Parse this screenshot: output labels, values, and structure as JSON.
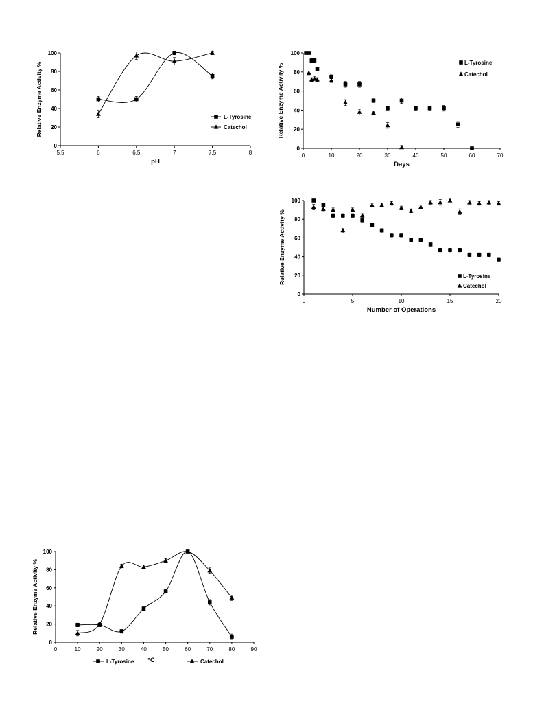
{
  "chart_data": [
    {
      "id": "ph",
      "type": "line",
      "xlabel": "pH",
      "ylabel": "Relative Enzyme Activity %",
      "xlim": [
        5.5,
        8
      ],
      "ylim": [
        0,
        100
      ],
      "xticks": [
        "5.5",
        "6",
        "6.5",
        "7",
        "7.5",
        "8"
      ],
      "yticks": [
        "0",
        "20",
        "40",
        "60",
        "80",
        "100"
      ],
      "legend_position": "right",
      "smooth": true,
      "series": [
        {
          "name": "L-Tyrosine",
          "marker": "square",
          "points": [
            [
              6,
              50
            ],
            [
              6.5,
              50
            ],
            [
              7,
              100
            ],
            [
              7.5,
              75
            ]
          ],
          "errors": [
            3,
            3,
            2,
            3
          ]
        },
        {
          "name": "Catechol",
          "marker": "triangle",
          "points": [
            [
              6,
              34
            ],
            [
              6.5,
              97
            ],
            [
              7,
              91
            ],
            [
              7.5,
              100
            ]
          ],
          "errors": [
            4,
            4,
            4,
            2
          ]
        }
      ]
    },
    {
      "id": "days",
      "type": "scatter",
      "xlabel": "Days",
      "ylabel": "Relative Enzyme Activity %",
      "xlim": [
        0,
        70
      ],
      "ylim": [
        0,
        100
      ],
      "xticks": [
        "0",
        "10",
        "20",
        "30",
        "40",
        "50",
        "60",
        "70"
      ],
      "yticks": [
        "0",
        "20",
        "40",
        "60",
        "80",
        "100"
      ],
      "legend_position": "top-right",
      "series": [
        {
          "name": "L-Tyrosine",
          "marker": "square",
          "points": [
            [
              1,
              100
            ],
            [
              2,
              100
            ],
            [
              3,
              92
            ],
            [
              4,
              92
            ],
            [
              5,
              83
            ],
            [
              10,
              75
            ],
            [
              15,
              67
            ],
            [
              20,
              67
            ],
            [
              25,
              50
            ],
            [
              30,
              42
            ],
            [
              35,
              50
            ],
            [
              40,
              42
            ],
            [
              45,
              42
            ],
            [
              50,
              42
            ],
            [
              55,
              25
            ],
            [
              60,
              0
            ]
          ],
          "errors": [
            1,
            1,
            2,
            2,
            2,
            2,
            3,
            3,
            2,
            2,
            3,
            2,
            2,
            3,
            3,
            0
          ]
        },
        {
          "name": "Catechol",
          "marker": "triangle",
          "points": [
            [
              2,
              79
            ],
            [
              3,
              72
            ],
            [
              4,
              73
            ],
            [
              5,
              72
            ],
            [
              10,
              71
            ],
            [
              15,
              48
            ],
            [
              20,
              38
            ],
            [
              25,
              37
            ],
            [
              30,
              24
            ],
            [
              35,
              1
            ]
          ],
          "errors": [
            2,
            2,
            2,
            2,
            2,
            3,
            3,
            2,
            3,
            2
          ]
        }
      ]
    },
    {
      "id": "operations",
      "type": "scatter",
      "xlabel": "Number of Operations",
      "ylabel": "Relative Enzyme Activity %",
      "xlim": [
        0,
        20
      ],
      "ylim": [
        0,
        100
      ],
      "xticks": [
        "0",
        "5",
        "10",
        "15",
        "20"
      ],
      "yticks": [
        "0",
        "20",
        "40",
        "60",
        "80",
        "100"
      ],
      "legend_position": "bottom-right",
      "series": [
        {
          "name": "L-Tyrosine",
          "marker": "square",
          "points": [
            [
              1,
              100
            ],
            [
              2,
              95
            ],
            [
              3,
              84
            ],
            [
              4,
              84
            ],
            [
              5,
              84
            ],
            [
              6,
              79
            ],
            [
              7,
              74
            ],
            [
              8,
              68
            ],
            [
              9,
              63
            ],
            [
              10,
              63
            ],
            [
              11,
              58
            ],
            [
              12,
              58
            ],
            [
              13,
              53
            ],
            [
              14,
              47
            ],
            [
              15,
              47
            ],
            [
              16,
              47
            ],
            [
              17,
              42
            ],
            [
              18,
              42
            ],
            [
              19,
              42
            ],
            [
              20,
              37
            ]
          ],
          "errors": [
            1,
            2,
            2,
            2,
            2,
            2,
            2,
            2,
            2,
            2,
            2,
            2,
            1,
            2,
            2,
            2,
            2,
            2,
            2,
            2
          ]
        },
        {
          "name": "Catechol",
          "marker": "triangle",
          "points": [
            [
              1,
              93
            ],
            [
              2,
              91
            ],
            [
              3,
              90
            ],
            [
              4,
              68
            ],
            [
              5,
              90
            ],
            [
              6,
              84
            ],
            [
              7,
              95
            ],
            [
              8,
              95
            ],
            [
              9,
              97
            ],
            [
              10,
              92
            ],
            [
              11,
              89
            ],
            [
              12,
              93
            ],
            [
              13,
              98
            ],
            [
              14,
              98
            ],
            [
              15,
              100
            ],
            [
              16,
              88
            ],
            [
              17,
              98
            ],
            [
              18,
              97
            ],
            [
              19,
              98
            ],
            [
              20,
              97
            ]
          ],
          "errors": [
            3,
            2,
            2,
            2,
            2,
            2,
            2,
            2,
            2,
            2,
            2,
            2,
            2,
            3,
            1,
            3,
            2,
            2,
            2,
            2
          ]
        }
      ]
    },
    {
      "id": "temperature",
      "type": "line",
      "xlabel": "°C",
      "ylabel": "Relative Enzyme Activity %",
      "xlim": [
        0,
        90
      ],
      "ylim": [
        0,
        100
      ],
      "xticks": [
        "0",
        "10",
        "20",
        "30",
        "40",
        "50",
        "60",
        "70",
        "80",
        "90"
      ],
      "yticks": [
        "0",
        "20",
        "40",
        "60",
        "80",
        "100"
      ],
      "legend_position": "bottom",
      "smooth": true,
      "series": [
        {
          "name": "L-Tyrosine",
          "marker": "square",
          "points": [
            [
              10,
              19
            ],
            [
              20,
              19
            ],
            [
              30,
              12
            ],
            [
              40,
              37
            ],
            [
              50,
              56
            ],
            [
              60,
              100
            ],
            [
              70,
              44
            ],
            [
              80,
              6
            ]
          ],
          "errors": [
            2,
            2,
            2,
            2,
            2,
            1,
            3,
            3
          ]
        },
        {
          "name": "Catechol",
          "marker": "triangle",
          "points": [
            [
              10,
              10
            ],
            [
              20,
              20
            ],
            [
              30,
              84
            ],
            [
              40,
              83
            ],
            [
              50,
              90
            ],
            [
              60,
              100
            ],
            [
              70,
              79
            ],
            [
              80,
              49
            ]
          ],
          "errors": [
            3,
            2,
            2,
            2,
            2,
            1,
            3,
            3
          ]
        }
      ]
    }
  ]
}
